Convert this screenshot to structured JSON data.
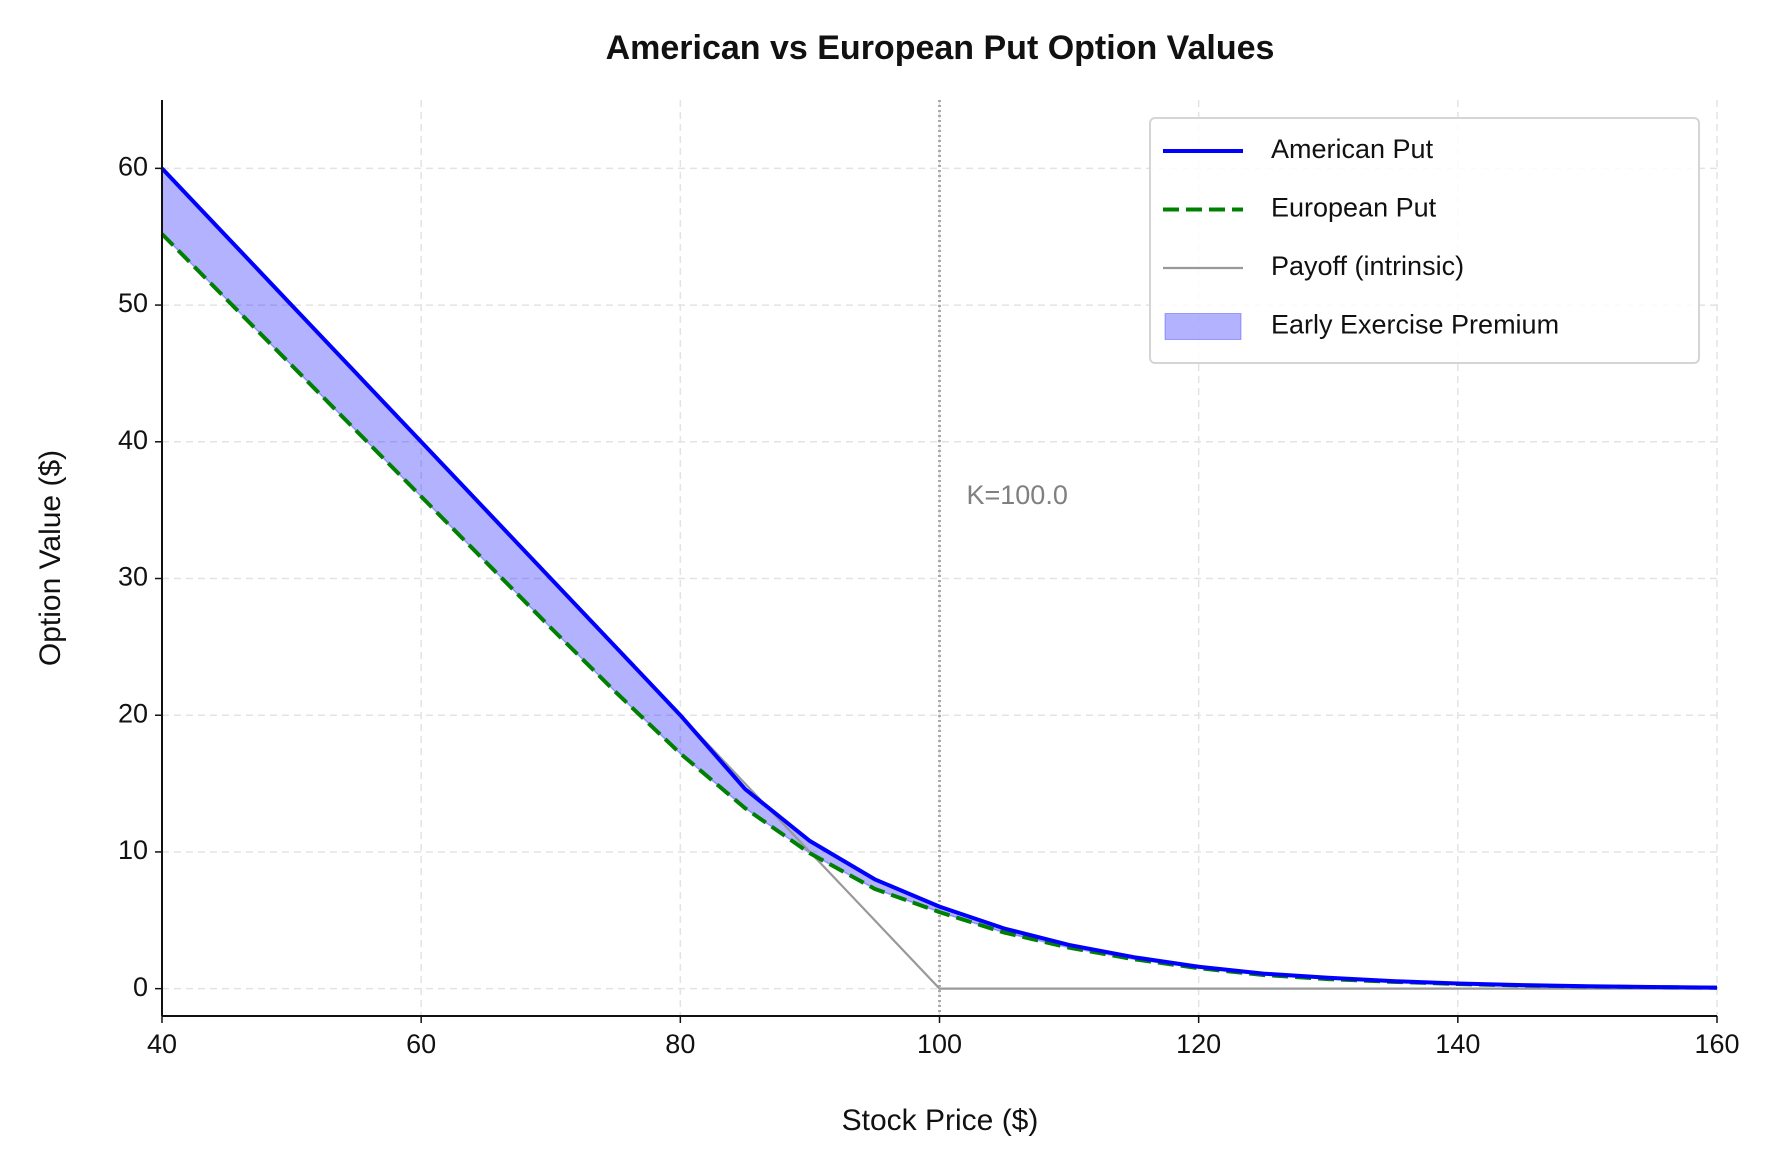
{
  "chart_data": {
    "type": "line",
    "title": "American vs European Put Option Values",
    "xlabel": "Stock Price ($)",
    "ylabel": "Option Value ($)",
    "x": [
      40,
      45,
      50,
      55,
      60,
      65,
      70,
      75,
      80,
      85,
      90,
      95,
      100,
      105,
      110,
      115,
      120,
      125,
      130,
      135,
      140,
      145,
      150,
      155,
      160
    ],
    "series": [
      {
        "name": "American Put",
        "color": "#0000ff",
        "linestyle": "solid",
        "values": [
          60,
          55,
          50,
          45,
          40,
          35,
          30,
          25,
          20,
          14.6,
          10.8,
          8.0,
          6.0,
          4.4,
          3.2,
          2.3,
          1.6,
          1.1,
          0.8,
          0.55,
          0.38,
          0.26,
          0.18,
          0.12,
          0.08
        ]
      },
      {
        "name": "European Put",
        "color": "#008000",
        "linestyle": "dashed",
        "values": [
          55.2,
          50.4,
          45.6,
          40.8,
          36.0,
          31.2,
          26.4,
          21.7,
          17.2,
          13.2,
          9.9,
          7.3,
          5.6,
          4.1,
          3.0,
          2.15,
          1.5,
          1.0,
          0.7,
          0.5,
          0.34,
          0.23,
          0.16,
          0.11,
          0.07
        ]
      },
      {
        "name": "Payoff (intrinsic)",
        "color": "#999999",
        "linestyle": "thin",
        "values": [
          60,
          55,
          50,
          45,
          40,
          35,
          30,
          25,
          20,
          15,
          10,
          5,
          0,
          0,
          0,
          0,
          0,
          0,
          0,
          0,
          0,
          0,
          0,
          0,
          0
        ]
      }
    ],
    "fill_between": {
      "name": "Early Exercise Premium",
      "color": "#0000ff",
      "between": [
        0,
        1
      ]
    },
    "vline": 100,
    "annotation": "K=100.0",
    "xlim": [
      40,
      160
    ],
    "ylim": [
      -2,
      65
    ],
    "xticks": [
      40,
      60,
      80,
      100,
      120,
      140,
      160
    ],
    "yticks": [
      0,
      10,
      20,
      30,
      40,
      50,
      60
    ],
    "grid": true,
    "legend": "upper right"
  }
}
